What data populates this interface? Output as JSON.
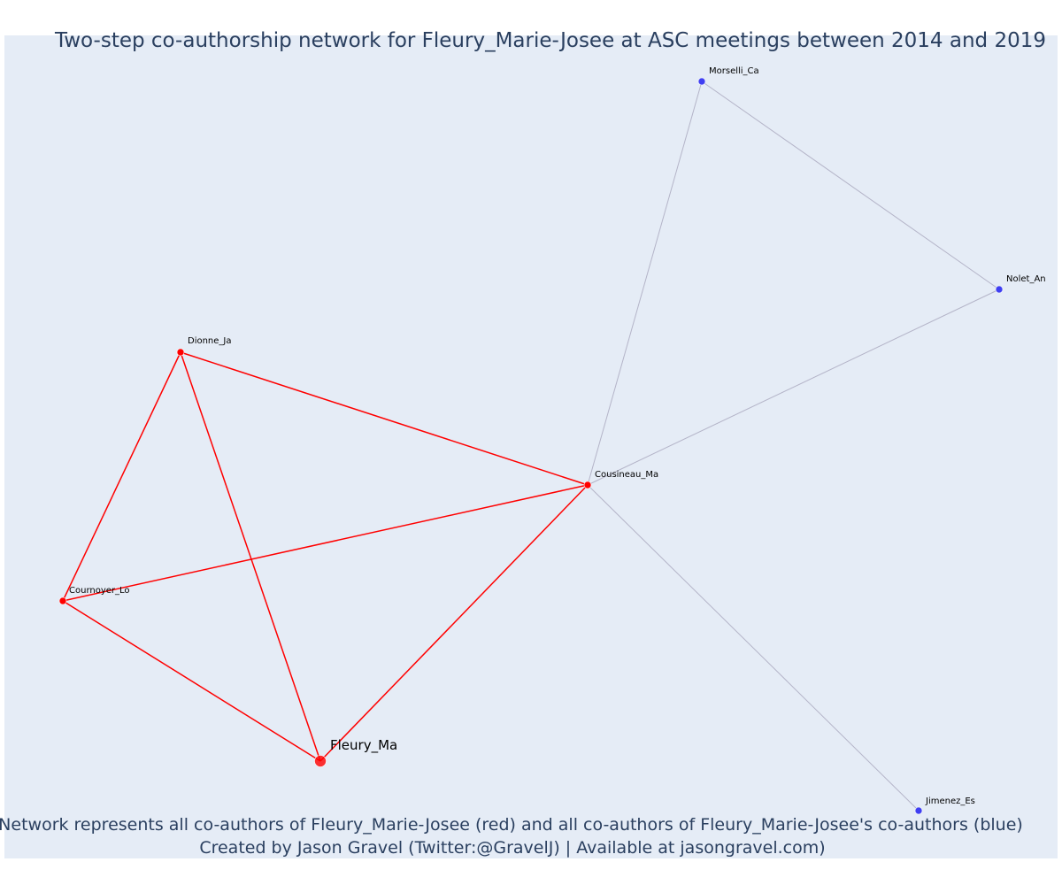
{
  "title": "Two-step co-authorship network for Fleury_Marie-Josee at ASC meetings between 2014 and 2019",
  "caption": {
    "line1": "Network represents all co-authors of Fleury_Marie-Josee (red) and all co-authors of Fleury_Marie-Josee's co-authors (blue)",
    "line2": "Created by Jason Gravel (Twitter:@GravelJ) | Available at jasongravel.com)"
  },
  "colors": {
    "background": "#e5ecf6",
    "first_degree": "#ff0000",
    "second_degree": "#3f3ff2",
    "second_degree_edge": "#b4b4c8",
    "title": "#2a3f5f"
  },
  "nodes": [
    {
      "id": "fleury",
      "label": "Fleury_Ma",
      "group": "ego"
    },
    {
      "id": "cousineau",
      "label": "Cousineau_Ma",
      "group": "first"
    },
    {
      "id": "dionne",
      "label": "Dionne_Ja",
      "group": "first"
    },
    {
      "id": "cournoyer",
      "label": "Cournoyer_Lo",
      "group": "first"
    },
    {
      "id": "morselli",
      "label": "Morselli_Ca",
      "group": "second"
    },
    {
      "id": "nolet",
      "label": "Nolet_An",
      "group": "second"
    },
    {
      "id": "jimenez",
      "label": "Jimenez_Es",
      "group": "second"
    }
  ],
  "edges": [
    {
      "source": "fleury",
      "target": "cousineau",
      "type": "first"
    },
    {
      "source": "fleury",
      "target": "dionne",
      "type": "first"
    },
    {
      "source": "fleury",
      "target": "cournoyer",
      "type": "first"
    },
    {
      "source": "dionne",
      "target": "cousineau",
      "type": "first"
    },
    {
      "source": "dionne",
      "target": "cournoyer",
      "type": "first"
    },
    {
      "source": "cournoyer",
      "target": "cousineau",
      "type": "first"
    },
    {
      "source": "cousineau",
      "target": "morselli",
      "type": "second"
    },
    {
      "source": "cousineau",
      "target": "nolet",
      "type": "second"
    },
    {
      "source": "cousineau",
      "target": "jimenez",
      "type": "second"
    },
    {
      "source": "morselli",
      "target": "nolet",
      "type": "second"
    }
  ]
}
